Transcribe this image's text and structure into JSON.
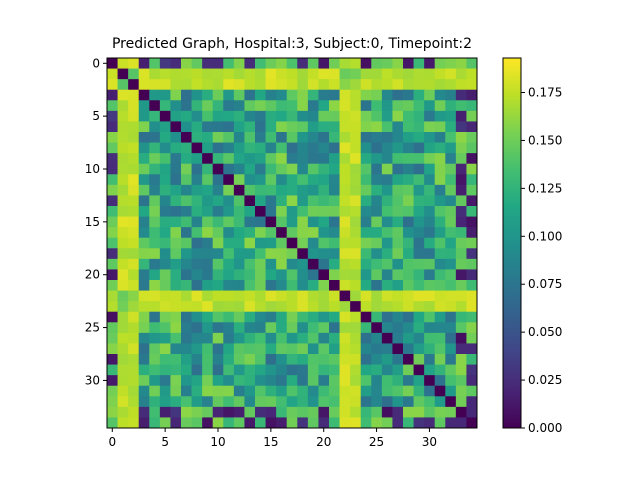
{
  "chart_data": {
    "type": "heatmap",
    "title": "Predicted Graph, Hospital:3, Subject:0, Timepoint:2",
    "xlabel": "",
    "ylabel": "",
    "n_rows": 35,
    "n_cols": 35,
    "x_ticks": [
      0,
      5,
      10,
      15,
      20,
      25,
      30
    ],
    "y_ticks": [
      0,
      5,
      10,
      15,
      20,
      25,
      30
    ],
    "colormap": "viridis",
    "colorbar": {
      "range": [
        0.0,
        0.193
      ],
      "ticks": [
        0.0,
        0.025,
        0.05,
        0.075,
        0.1,
        0.125,
        0.15,
        0.175
      ],
      "tick_labels": [
        "0.000",
        "0.025",
        "0.050",
        "0.075",
        "0.100",
        "0.125",
        "0.150",
        "0.175"
      ]
    },
    "diagonal_value": 0.0,
    "high_rows_cols": [
      1,
      2,
      22,
      23
    ],
    "high_value": 0.185,
    "low_rows_cols": [
      0,
      33,
      34
    ],
    "low_value": 0.06,
    "background_range": [
      0.07,
      0.16
    ],
    "note_values": "Cell values estimated from colour; matrix is symmetric with a zero diagonal."
  }
}
